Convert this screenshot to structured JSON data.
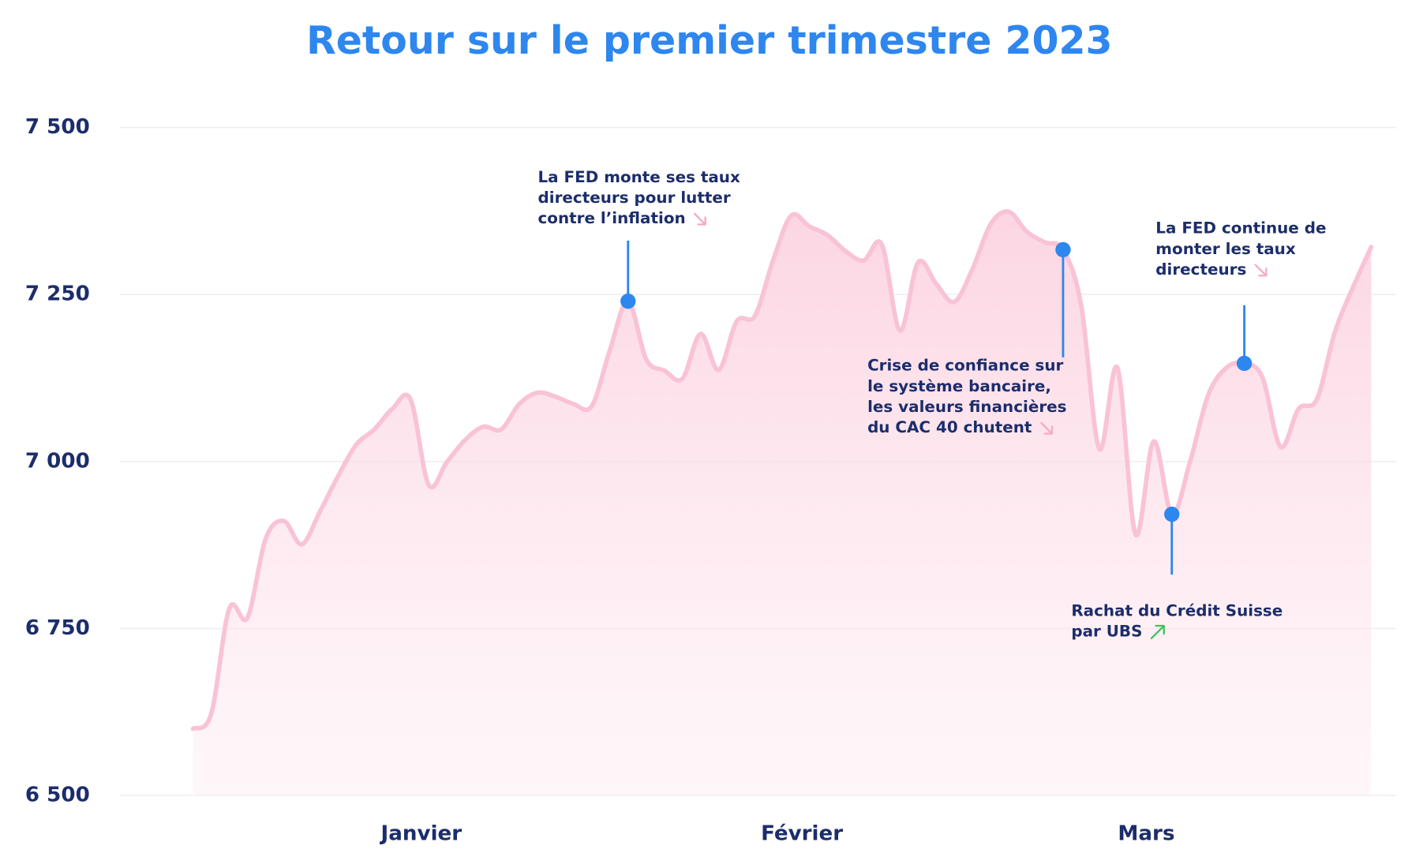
{
  "chart_data": {
    "type": "area",
    "title": "Retour sur le premier trimestre 2023",
    "categories": [
      null,
      null,
      null,
      null,
      null,
      null,
      null,
      null,
      null,
      null,
      null,
      null,
      "Janvier",
      null,
      null,
      null,
      null,
      null,
      null,
      null,
      null,
      null,
      null,
      null,
      null,
      null,
      null,
      null,
      null,
      null,
      null,
      null,
      null,
      "Février",
      null,
      null,
      null,
      null,
      null,
      null,
      null,
      null,
      null,
      null,
      null,
      null,
      null,
      null,
      null,
      null,
      null,
      null,
      "Mars",
      null,
      null,
      null,
      null,
      null,
      null,
      null,
      null,
      null,
      null,
      null,
      null,
      null
    ],
    "values": [
      6600,
      6622,
      6780,
      6766,
      6884,
      6911,
      6876,
      6925,
      6978,
      7025,
      7048,
      7079,
      7093,
      6965,
      6999,
      7032,
      7052,
      7048,
      7086,
      7103,
      7097,
      7086,
      7083,
      7167,
      7240,
      7153,
      7136,
      7124,
      7191,
      7137,
      7210,
      7218,
      7301,
      7368,
      7352,
      7339,
      7315,
      7301,
      7325,
      7196,
      7298,
      7266,
      7239,
      7288,
      7355,
      7374,
      7344,
      7328,
      7317,
      7234,
      7019,
      7140,
      6891,
      7030,
      6921,
      6999,
      7099,
      7140,
      7147,
      7126,
      7022,
      7079,
      7093,
      7194,
      7261,
      7321
    ],
    "color": "#f9c3d5",
    "ylim": [
      6500,
      7500
    ],
    "yticks": [
      {
        "value": 6500,
        "label": "6 500"
      },
      {
        "value": 6750,
        "label": "6 750"
      },
      {
        "value": 7000,
        "label": "7 000"
      },
      {
        "value": 7250,
        "label": "7 250"
      },
      {
        "value": 7500,
        "label": "7 500"
      }
    ],
    "grid": true,
    "annotations": [
      {
        "lines": [
          "La FED monte ses taux",
          "directeurs pour lutter",
          "contre l’inflation"
        ]
      },
      {
        "lines": [
          "Crise de confiance sur",
          "le système bancaire,",
          "les valeurs financières",
          "du CAC 40 chutent"
        ]
      },
      {
        "lines": [
          "La FED continue de",
          "monter les taux",
          "directeurs"
        ]
      },
      {
        "lines": [
          "Rachat du Crédit Suisse",
          "par UBS"
        ]
      }
    ]
  }
}
